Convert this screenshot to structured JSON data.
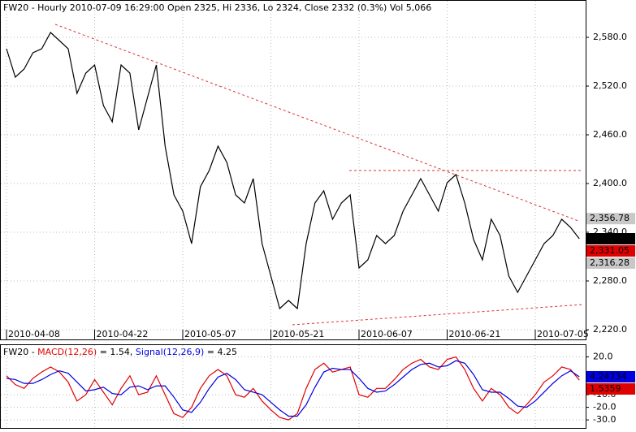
{
  "chart_data": [
    {
      "type": "line",
      "title": "FW20 - Hourly 2010-07-09 16:29:00 Open 2325, Hi 2336, Lo 2324, Close 2332 (0.3%) Vol 5,066",
      "categories": [
        "2010-04-08",
        null,
        null,
        null,
        null,
        null,
        null,
        null,
        null,
        null,
        "2010-04-22",
        null,
        null,
        null,
        null,
        null,
        null,
        null,
        null,
        null,
        "2010-05-07",
        null,
        null,
        null,
        null,
        null,
        null,
        null,
        null,
        null,
        "2010-05-21",
        null,
        null,
        null,
        null,
        null,
        null,
        null,
        null,
        null,
        "2010-06-07",
        null,
        null,
        null,
        null,
        null,
        null,
        null,
        null,
        null,
        "2010-06-21",
        null,
        null,
        null,
        null,
        null,
        null,
        null,
        null,
        null,
        "2010-07-05",
        null,
        null,
        null,
        null,
        null
      ],
      "series": [
        {
          "name": "FW20",
          "color": "#000000",
          "values": [
            2566,
            2531,
            2541,
            2561,
            2566,
            2586,
            2576,
            2566,
            2511,
            2536,
            2546,
            2496,
            2476,
            2546,
            2536,
            2466,
            2506,
            2546,
            2446,
            2386,
            2366,
            2326,
            2396,
            2416,
            2446,
            2426,
            2386,
            2376,
            2406,
            2326,
            2286,
            2246,
            2256,
            2246,
            2326,
            2376,
            2391,
            2356,
            2376,
            2386,
            2296,
            2306,
            2336,
            2326,
            2336,
            2366,
            2386,
            2406,
            2386,
            2366,
            2401,
            2411,
            2376,
            2331,
            2306,
            2356,
            2336,
            2286,
            2266,
            2286,
            2306,
            2326,
            2336,
            2356,
            2346,
            2332
          ]
        }
      ],
      "ylim": [
        2208,
        2626
      ],
      "yticks": [
        {
          "value": 2220,
          "label": "2,220.0"
        },
        {
          "value": 2280,
          "label": "2,280.0"
        },
        {
          "value": 2340,
          "label": "2,340.0"
        },
        {
          "value": 2400,
          "label": "2,400.0"
        },
        {
          "value": 2460,
          "label": "2,460.0"
        },
        {
          "value": 2520,
          "label": "2,520.0"
        },
        {
          "value": 2580,
          "label": "2,580.0"
        }
      ],
      "markers": [
        {
          "value": 2356.78,
          "label": "2,356.78",
          "color": "#c8c8c8"
        },
        {
          "value": 2332,
          "label": "2,332",
          "color": "#000000"
        },
        {
          "value": 2331.05,
          "label": "2,331.05",
          "color": "#e00000"
        },
        {
          "value": 2316.28,
          "label": "2,316.28",
          "color": "#c8c8c8"
        }
      ],
      "grid": true
    },
    {
      "type": "line",
      "title": "FW20 -",
      "title_values": [
        "= 1.54,",
        "= 4.25"
      ],
      "series": [
        {
          "name": "MACD(12,26)",
          "color": "#e00000",
          "values": [
            5,
            -2,
            -5,
            3,
            8,
            12,
            8,
            0,
            -15,
            -10,
            2,
            -8,
            -18,
            -5,
            5,
            -10,
            -8,
            5,
            -10,
            -25,
            -28,
            -20,
            -5,
            5,
            10,
            5,
            -10,
            -12,
            -5,
            -15,
            -22,
            -28,
            -30,
            -25,
            -5,
            10,
            15,
            8,
            10,
            12,
            -10,
            -12,
            -5,
            -5,
            2,
            10,
            15,
            18,
            12,
            10,
            18,
            20,
            10,
            -5,
            -15,
            -5,
            -10,
            -20,
            -25,
            -18,
            -10,
            0,
            5,
            12,
            10,
            1.54
          ]
        },
        {
          "name": "Signal(12,26,9)",
          "color": "#0000e0",
          "values": [
            3,
            2,
            -1,
            -1,
            2,
            6,
            9,
            7,
            0,
            -7,
            -6,
            -4,
            -9,
            -10,
            -4,
            -3,
            -6,
            -3,
            -3,
            -12,
            -22,
            -24,
            -16,
            -5,
            4,
            7,
            2,
            -6,
            -8,
            -10,
            -16,
            -22,
            -27,
            -27,
            -18,
            -4,
            8,
            11,
            10,
            10,
            3,
            -5,
            -8,
            -7,
            -2,
            4,
            10,
            14,
            15,
            12,
            13,
            17,
            15,
            6,
            -6,
            -8,
            -8,
            -13,
            -19,
            -20,
            -15,
            -8,
            -1,
            5,
            9,
            4.25
          ]
        }
      ],
      "ylim": [
        -37,
        30
      ],
      "yticks": [
        {
          "value": 20,
          "label": "20.0"
        },
        {
          "value": -10,
          "label": "-10.0"
        },
        {
          "value": -20,
          "label": "-20.0"
        },
        {
          "value": -30,
          "label": "-30.0"
        }
      ],
      "markers": [
        {
          "value": 4.24734,
          "color": "#0000e0"
        },
        {
          "value": 1.5359,
          "color": "#e00000"
        }
      ],
      "grid": true
    }
  ]
}
